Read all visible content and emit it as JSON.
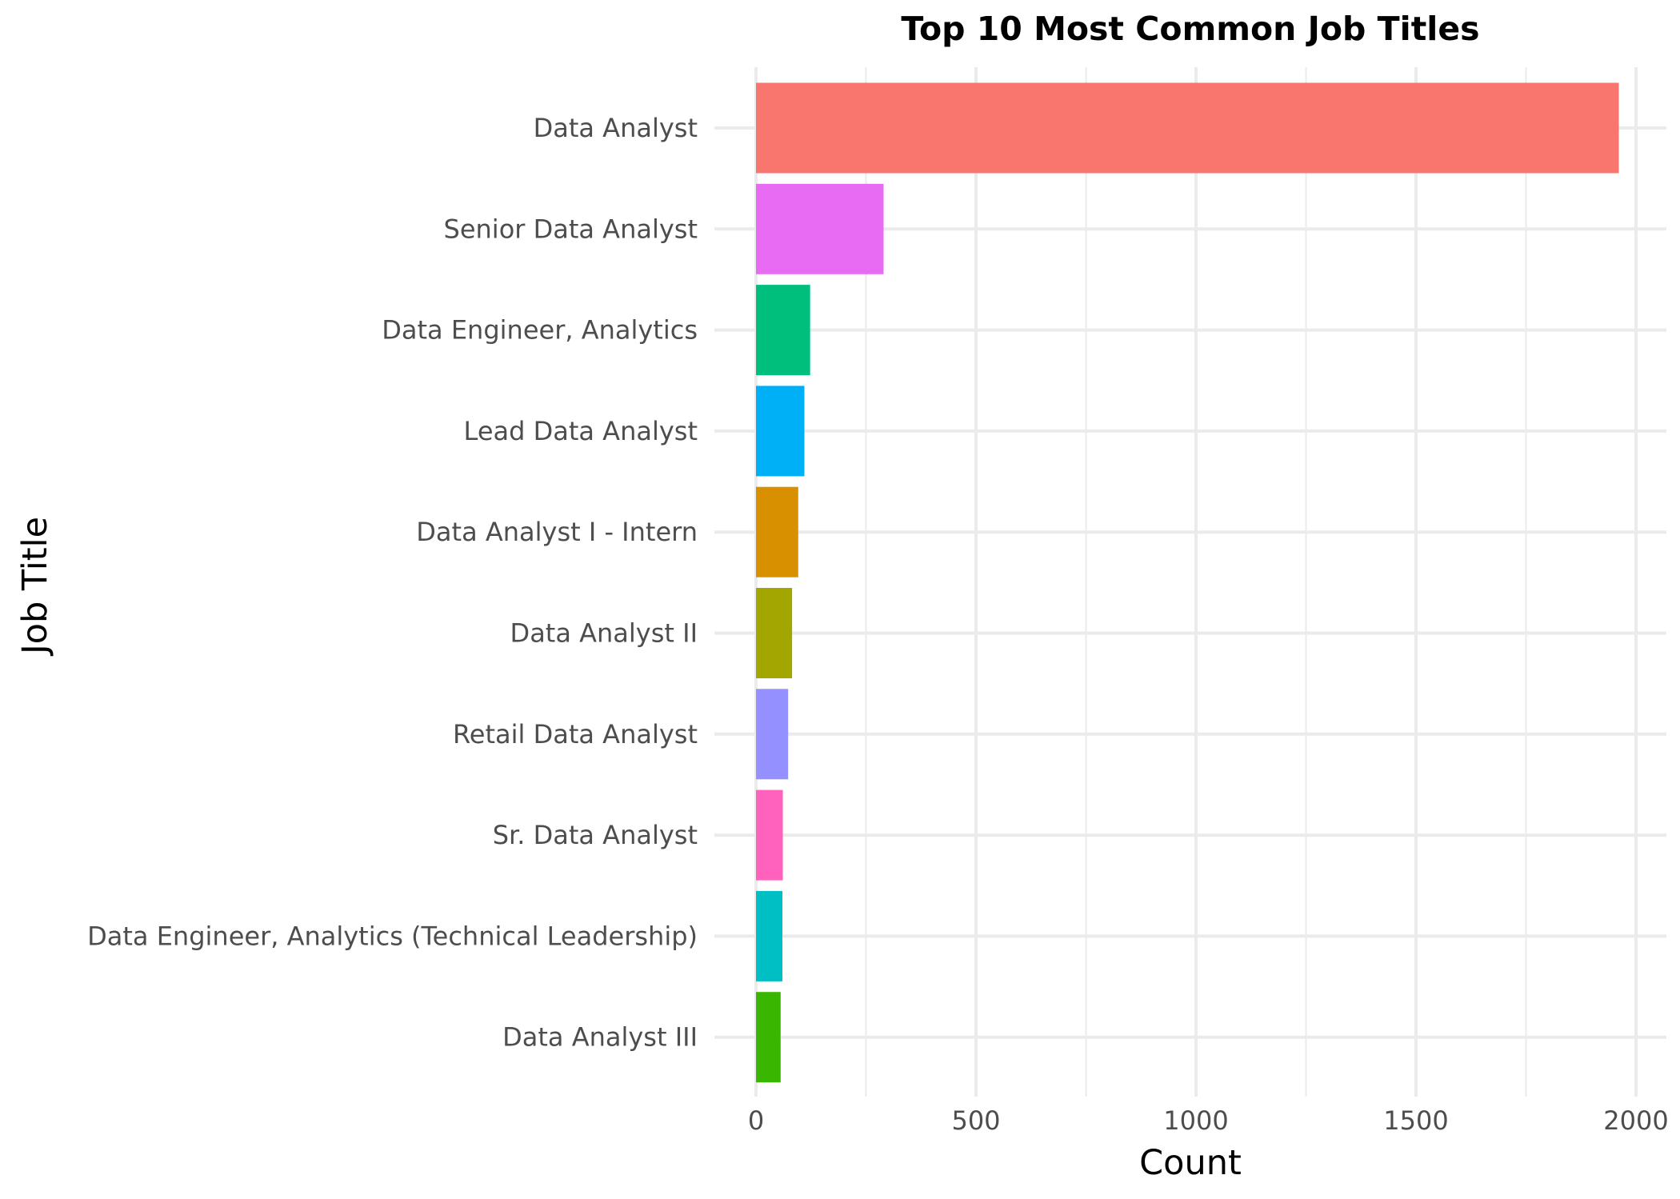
{
  "chart_data": {
    "type": "bar",
    "orientation": "horizontal",
    "title": "Top 10 Most Common Job Titles",
    "xlabel": "Count",
    "ylabel": "Job Title",
    "xlim": [
      0,
      2050
    ],
    "x_ticks": [
      0,
      500,
      1000,
      1500,
      2000
    ],
    "grid": true,
    "legend": "none",
    "categories": [
      "Data Analyst",
      "Senior Data Analyst",
      "Data Engineer, Analytics",
      "Lead Data Analyst",
      "Data Analyst I - Intern",
      "Data Analyst II",
      "Retail Data Analyst",
      "Sr. Data Analyst",
      "Data Engineer, Analytics (Technical Leadership)",
      "Data Analyst III"
    ],
    "values": [
      1961,
      290,
      123,
      110,
      96,
      82,
      73,
      61,
      60,
      56
    ],
    "colors": [
      "#F8766D",
      "#E76BF3",
      "#00BF7D",
      "#00B0F6",
      "#D89000",
      "#A3A500",
      "#9590FF",
      "#FF62BC",
      "#00BFC4",
      "#39B600"
    ]
  }
}
